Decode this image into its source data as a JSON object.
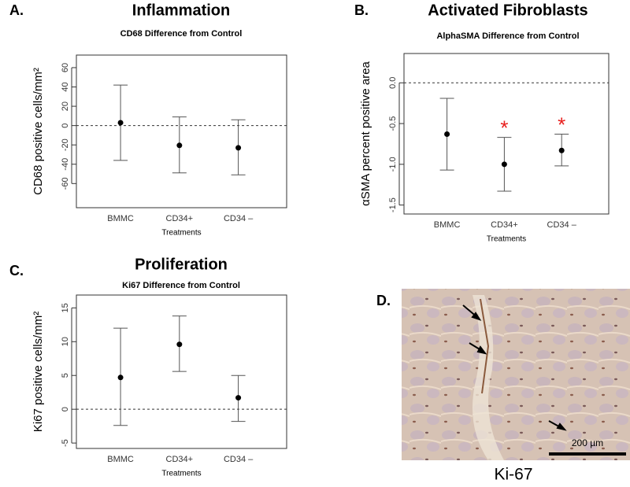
{
  "chart_data": [
    {
      "type": "errorbar",
      "panel": "A.",
      "title": "Inflammation",
      "subtitle": "CD68 Difference from Control",
      "y_label": "CD68 positive cells/mm²",
      "x_label": "Treatments",
      "categories": [
        "BMMC",
        "CD34+",
        "CD34 –"
      ],
      "values": [
        3,
        -20.5,
        -23
      ],
      "upper": [
        42,
        9,
        6
      ],
      "lower": [
        -36,
        -49,
        -51
      ],
      "color": "#000000",
      "refline": 0,
      "ylim": [
        -85,
        73
      ],
      "yticks": [
        -60,
        -40,
        -20,
        0,
        20,
        40,
        60
      ]
    },
    {
      "type": "errorbar",
      "panel": "B.",
      "title": "Activated Fibroblasts",
      "subtitle": "AlphaSMA Difference from Control",
      "y_label": "αSMA percent positive area",
      "x_label": "Treatments",
      "categories": [
        "BMMC",
        "CD34+",
        "CD34 –"
      ],
      "values": [
        -0.63,
        -1.0,
        -0.83
      ],
      "upper": [
        -0.19,
        -0.67,
        -0.63
      ],
      "lower": [
        -1.07,
        -1.33,
        -1.02
      ],
      "color": "#000000",
      "refline": 0,
      "annotations": [
        {
          "text": "*",
          "category": "CD34+",
          "color": "#e8201e"
        },
        {
          "text": "*",
          "category": "CD34 –",
          "color": "#e8201e"
        }
      ],
      "ylim": [
        -1.61,
        0.36
      ],
      "yticks": [
        {
          "value": 0,
          "label": "0.0"
        },
        -0.5,
        {
          "value": -1,
          "label": "-1.0"
        },
        -1.5
      ]
    },
    {
      "type": "errorbar",
      "panel": "C.",
      "title": "Proliferation",
      "subtitle": "Ki67 Difference from Control",
      "y_label": "Ki67 positive cells/mm²",
      "x_label": "Treatments",
      "categories": [
        "BMMC",
        "CD34+",
        "CD34 –"
      ],
      "values": [
        4.7,
        9.6,
        1.7
      ],
      "upper": [
        12,
        13.8,
        5
      ],
      "lower": [
        -2.4,
        5.6,
        -1.8
      ],
      "color": "#000000",
      "refline": 0,
      "ylim": [
        -5.8,
        16.9
      ],
      "yticks": [
        -5,
        0,
        5,
        10,
        15
      ]
    }
  ],
  "panel_d": {
    "panel": "D.",
    "scale_bar": "200 µm",
    "caption": "Ki-67"
  }
}
